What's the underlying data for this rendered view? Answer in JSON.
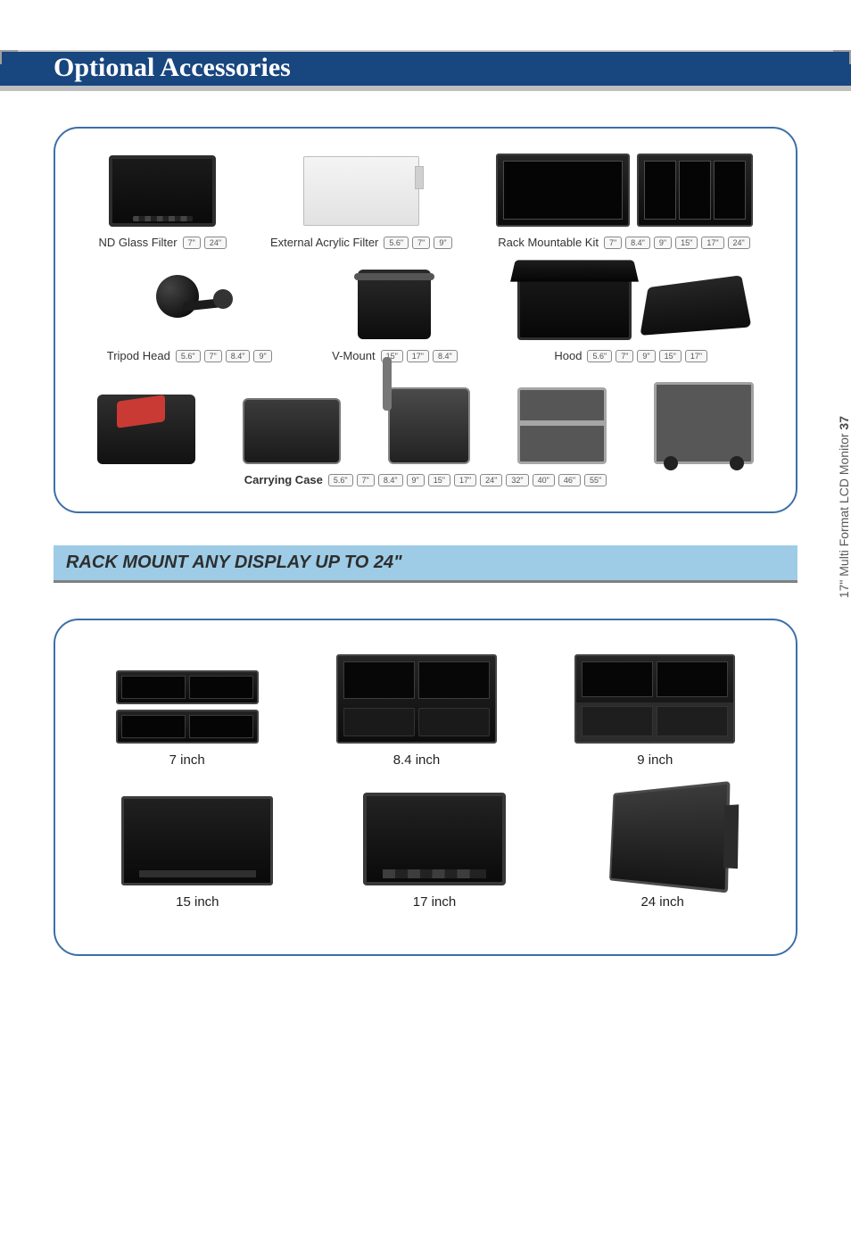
{
  "colors": {
    "title_bar_blue": "#18467f",
    "title_bar_grey": "#bfbfbf",
    "title_text": "#ffffff",
    "panel_border": "#3c6fa7",
    "section_bg": "#9ecce6",
    "section_underline": "#808080",
    "side_text": "#585858"
  },
  "title": "Optional Accessories",
  "side_label_prefix": "17\" Multi Format LCD Monitor ",
  "side_label_page": "37",
  "accessories": {
    "nd_glass": {
      "label": "ND Glass Filter",
      "sizes": [
        "7\"",
        "24\""
      ]
    },
    "acrylic": {
      "label": "External Acrylic Filter",
      "sizes": [
        "5.6\"",
        "7\"",
        "9\""
      ]
    },
    "rack_kit": {
      "label": "Rack Mountable Kit",
      "sizes": [
        "7\"",
        "8.4\"",
        "9\"",
        "15\"",
        "17\"",
        "24\""
      ]
    },
    "tripod": {
      "label": "Tripod Head",
      "sizes": [
        "5.6\"",
        "7\"",
        "8.4\"",
        "9\""
      ]
    },
    "vmount": {
      "label": "V-Mount",
      "sizes": [
        "15\"",
        "17\"",
        "8.4\""
      ]
    },
    "hood": {
      "label": "Hood",
      "sizes": [
        "5.6\"",
        "7\"",
        "9\"",
        "15\"",
        "17\""
      ]
    },
    "carrying": {
      "label": "Carrying Case",
      "sizes": [
        "5.6\"",
        "7\"",
        "8.4\"",
        "9\"",
        "15\"",
        "17\"",
        "24\"",
        "32\"",
        "40\"",
        "46\"",
        "55\""
      ]
    }
  },
  "section_heading": "RACK MOUNT ANY DISPLAY UP TO 24\"",
  "rackmount": {
    "r7": "7 inch",
    "r84": "8.4 inch",
    "r9": "9 inch",
    "r15": "15 inch",
    "r17": "17 inch",
    "r24": "24 inch"
  }
}
